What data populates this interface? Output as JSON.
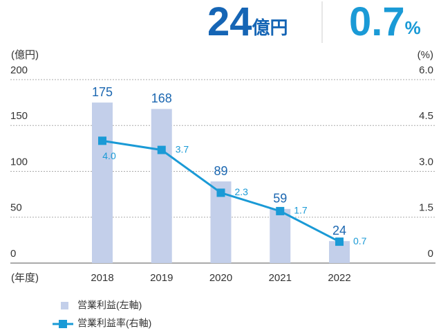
{
  "chart_data": {
    "type": "bar_line",
    "headline": [
      {
        "value": "24",
        "unit": "億円",
        "color": "#1565b5"
      },
      {
        "value": "0.7",
        "unit": "%",
        "color": "#1a9ad6"
      }
    ],
    "ylabel": "(億円)",
    "y2label": "(%)",
    "xlabel": "(年度)",
    "categories": [
      "2018",
      "2019",
      "2020",
      "2021",
      "2022"
    ],
    "ylim": [
      0,
      200
    ],
    "yticks": [
      0,
      50,
      100,
      150,
      200
    ],
    "y2lim": [
      0,
      6
    ],
    "y2ticks": [
      0,
      1.5,
      {
        "value": 3,
        "label": "3.0"
      },
      4.5,
      {
        "value": 6,
        "label": "6.0"
      }
    ],
    "grid": true,
    "series": [
      {
        "name": "営業利益(左軸)",
        "type": "bar",
        "color": "#c3cfea",
        "label_color": "#1a66b0",
        "values": [
          175,
          168,
          89,
          59,
          24
        ]
      },
      {
        "name": "営業利益率(右軸)",
        "type": "line",
        "axis": "y2",
        "color": "#1a9ad6",
        "values": [
          4.0,
          3.7,
          2.3,
          1.7,
          0.7
        ],
        "value_labels": [
          "4.0",
          "3.7",
          "2.3",
          "1.7",
          "0.7"
        ]
      }
    ]
  }
}
